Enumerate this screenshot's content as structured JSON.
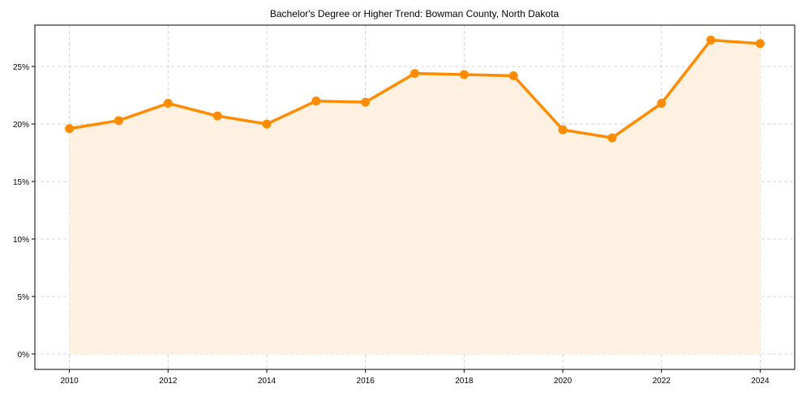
{
  "chart_data": {
    "type": "line",
    "title": "Bachelor's Degree or Higher Trend: Bowman County, North Dakota",
    "xlabel": "",
    "ylabel": "",
    "x": [
      2010,
      2011,
      2012,
      2013,
      2014,
      2015,
      2016,
      2017,
      2018,
      2019,
      2020,
      2021,
      2022,
      2023,
      2024
    ],
    "series": [
      {
        "name": "Bachelor's Degree or Higher",
        "values": [
          19.6,
          20.3,
          21.8,
          20.7,
          20.0,
          22.0,
          21.9,
          24.4,
          24.3,
          24.2,
          19.5,
          18.8,
          21.8,
          27.3,
          27.0
        ],
        "color": "#ff8c00",
        "fill_color": "#fff1e2"
      }
    ],
    "xticks": [
      2010,
      2012,
      2014,
      2016,
      2018,
      2020,
      2022,
      2024
    ],
    "xtick_labels": [
      "2010",
      "2012",
      "2014",
      "2016",
      "2018",
      "2020",
      "2022",
      "2024"
    ],
    "yticks": [
      0,
      5,
      10,
      15,
      20,
      25
    ],
    "ytick_labels": [
      "0%",
      "5%",
      "10%",
      "15%",
      "20%",
      "25%"
    ],
    "xlim": [
      2009.3,
      2024.7
    ],
    "ylim": [
      -1.34,
      28.6
    ],
    "grid": true,
    "legend": "none"
  }
}
